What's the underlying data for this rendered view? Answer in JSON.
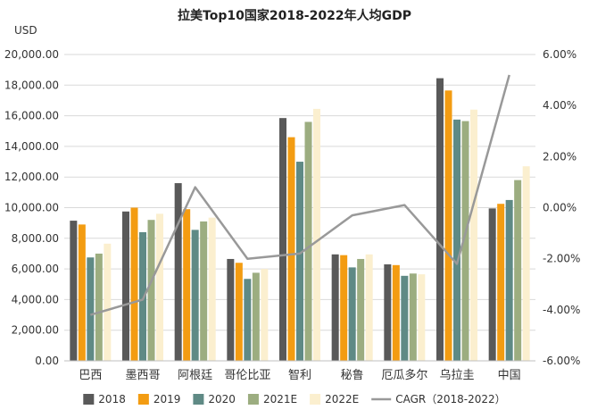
{
  "chart_data": {
    "type": "bar",
    "title": "拉美Top10国家2018-2022年人均GDP",
    "ylabel": "USD",
    "categories": [
      "巴西",
      "墨西哥",
      "阿根廷",
      "哥伦比亚",
      "智利",
      "秘鲁",
      "厄瓜多尔",
      "乌拉圭",
      "中国"
    ],
    "series": [
      {
        "name": "2018",
        "type": "bar",
        "color": "#595959",
        "values": [
          9150,
          9750,
          11600,
          6650,
          15850,
          6950,
          6300,
          18450,
          9950
        ]
      },
      {
        "name": "2019",
        "type": "bar",
        "color": "#f39c12",
        "values": [
          8900,
          10000,
          9900,
          6400,
          14600,
          6900,
          6250,
          17650,
          10250
        ]
      },
      {
        "name": "2020",
        "type": "bar",
        "color": "#5f8a85",
        "values": [
          6750,
          8400,
          8550,
          5350,
          13000,
          6100,
          5550,
          15750,
          10500
        ]
      },
      {
        "name": "2021E",
        "type": "bar",
        "color": "#9cad80",
        "values": [
          7000,
          9200,
          9100,
          5750,
          15600,
          6650,
          5700,
          15650,
          11800
        ]
      },
      {
        "name": "2022E",
        "type": "bar",
        "color": "#fbefcf",
        "values": [
          7650,
          9600,
          9350,
          6000,
          16450,
          6950,
          5650,
          16400,
          12700
        ]
      },
      {
        "name": "CAGR（2018-2022）",
        "type": "line",
        "axis": "right",
        "color": "#999999",
        "values": [
          -4.2,
          -3.6,
          0.8,
          -2.0,
          -1.8,
          -0.3,
          0.1,
          -2.2,
          5.2
        ]
      }
    ],
    "ylim": [
      0,
      20000
    ],
    "yticks": [
      "0.00",
      "2,000.00",
      "4,000.00",
      "6,000.00",
      "8,000.00",
      "10,000.00",
      "12,000.00",
      "14,000.00",
      "16,000.00",
      "18,000.00",
      "20,000.00"
    ],
    "y2lim": [
      -6,
      6
    ],
    "y2ticks": [
      "-6.00%",
      "-4.00%",
      "-2.00%",
      "0.00%",
      "2.00%",
      "4.00%",
      "6.00%"
    ],
    "grid": true,
    "legend_position": "bottom"
  }
}
